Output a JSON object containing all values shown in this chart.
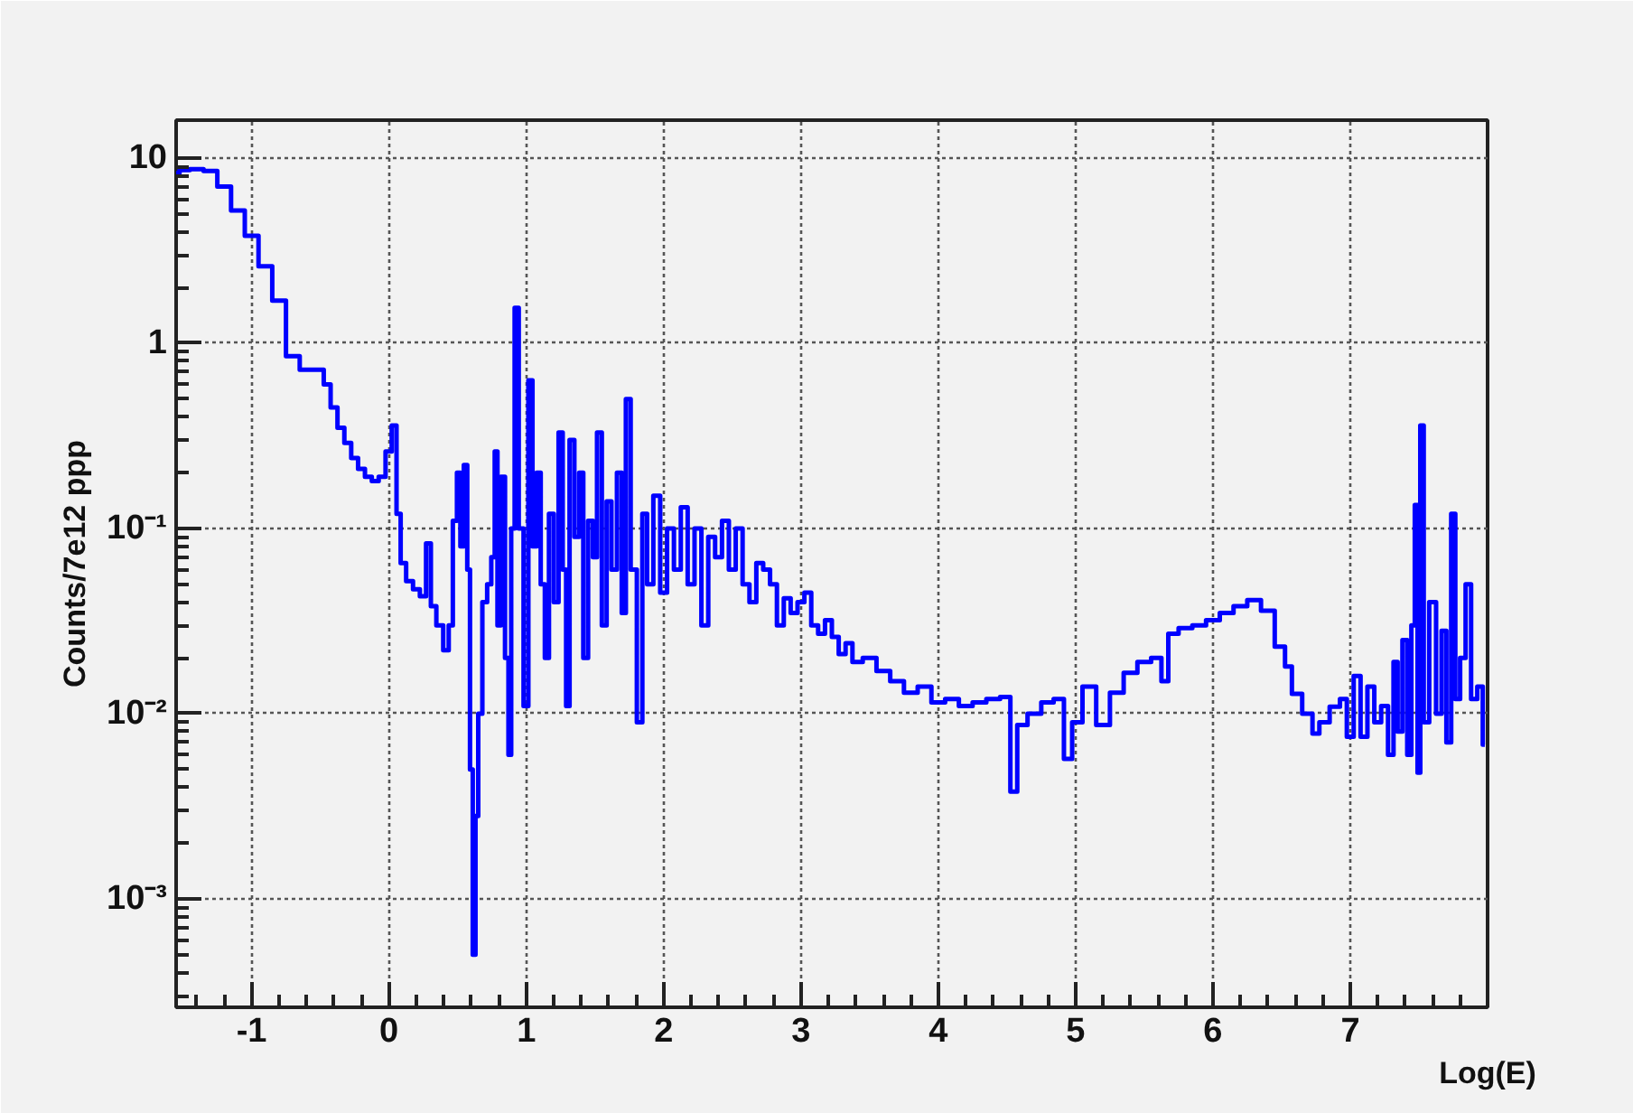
{
  "chart_data": {
    "type": "step",
    "xlabel": "Log(E)",
    "ylabel": "Counts/7e12 ppp",
    "log": "y",
    "grid": true,
    "marker": "none",
    "line_style": "solid",
    "xlim": [
      -1.55,
      8
    ],
    "ylim": [
      0.00026,
      16
    ],
    "xticks": [
      -1,
      0,
      1,
      2,
      3,
      4,
      5,
      6,
      7
    ],
    "yticks": [
      {
        "value": 0.001,
        "label": "10⁻³"
      },
      {
        "value": 0.01,
        "label": "10⁻²"
      },
      {
        "value": 0.1,
        "label": "10⁻¹"
      },
      1,
      10
    ],
    "series": [
      {
        "color": "#0000ff",
        "x": [
          -1.55,
          -1.5,
          -1.4,
          -1.3,
          -1.2,
          -1.1,
          -1.0,
          -0.9,
          -0.8,
          -0.7,
          -0.6,
          -0.5,
          -0.45,
          -0.4,
          -0.35,
          -0.3,
          -0.25,
          -0.2,
          -0.15,
          -0.1,
          -0.05,
          0.0,
          0.04,
          0.07,
          0.1,
          0.15,
          0.2,
          0.25,
          0.29,
          0.32,
          0.37,
          0.42,
          0.45,
          0.48,
          0.51,
          0.53,
          0.56,
          0.58,
          0.6,
          0.62,
          0.64,
          0.66,
          0.7,
          0.73,
          0.76,
          0.78,
          0.8,
          0.83,
          0.86,
          0.88,
          0.9,
          0.93,
          0.96,
          1.0,
          1.03,
          1.06,
          1.09,
          1.12,
          1.15,
          1.18,
          1.22,
          1.25,
          1.28,
          1.3,
          1.33,
          1.37,
          1.4,
          1.43,
          1.47,
          1.5,
          1.53,
          1.57,
          1.6,
          1.64,
          1.68,
          1.71,
          1.74,
          1.78,
          1.83,
          1.86,
          1.9,
          1.95,
          2.0,
          2.05,
          2.1,
          2.15,
          2.2,
          2.25,
          2.3,
          2.35,
          2.4,
          2.45,
          2.5,
          2.55,
          2.6,
          2.65,
          2.7,
          2.75,
          2.8,
          2.85,
          2.9,
          2.95,
          3.0,
          3.05,
          3.1,
          3.15,
          3.2,
          3.25,
          3.3,
          3.35,
          3.4,
          3.5,
          3.6,
          3.7,
          3.8,
          3.9,
          4.0,
          4.1,
          4.2,
          4.3,
          4.4,
          4.5,
          4.55,
          4.6,
          4.7,
          4.8,
          4.88,
          4.95,
          5.0,
          5.1,
          5.2,
          5.3,
          5.4,
          5.5,
          5.6,
          5.65,
          5.7,
          5.8,
          5.9,
          6.0,
          6.1,
          6.2,
          6.3,
          6.4,
          6.5,
          6.55,
          6.6,
          6.7,
          6.75,
          6.8,
          6.9,
          6.95,
          7.0,
          7.05,
          7.1,
          7.15,
          7.2,
          7.25,
          7.3,
          7.33,
          7.36,
          7.4,
          7.43,
          7.46,
          7.48,
          7.5,
          7.52,
          7.55,
          7.6,
          7.65,
          7.68,
          7.72,
          7.75,
          7.78,
          7.82,
          7.86,
          7.9,
          7.95,
          7.98
        ],
        "values": [
          8.3,
          8.6,
          8.7,
          8.5,
          7.0,
          5.2,
          3.8,
          2.6,
          1.7,
          0.85,
          0.72,
          0.72,
          0.6,
          0.45,
          0.35,
          0.29,
          0.24,
          0.21,
          0.19,
          0.18,
          0.19,
          0.26,
          0.36,
          0.12,
          0.065,
          0.052,
          0.047,
          0.043,
          0.083,
          0.038,
          0.03,
          0.022,
          0.03,
          0.11,
          0.2,
          0.08,
          0.22,
          0.06,
          0.005,
          0.0005,
          0.0028,
          0.01,
          0.04,
          0.05,
          0.07,
          0.26,
          0.03,
          0.19,
          0.02,
          0.006,
          0.1,
          1.55,
          0.1,
          0.011,
          0.63,
          0.08,
          0.2,
          0.05,
          0.02,
          0.12,
          0.04,
          0.33,
          0.06,
          0.011,
          0.3,
          0.09,
          0.2,
          0.02,
          0.11,
          0.07,
          0.33,
          0.03,
          0.14,
          0.06,
          0.2,
          0.035,
          0.5,
          0.06,
          0.009,
          0.12,
          0.05,
          0.15,
          0.045,
          0.1,
          0.06,
          0.13,
          0.05,
          0.1,
          0.03,
          0.09,
          0.07,
          0.11,
          0.06,
          0.1,
          0.05,
          0.04,
          0.065,
          0.06,
          0.05,
          0.03,
          0.042,
          0.035,
          0.04,
          0.045,
          0.03,
          0.027,
          0.032,
          0.026,
          0.021,
          0.024,
          0.019,
          0.02,
          0.017,
          0.015,
          0.013,
          0.014,
          0.0115,
          0.012,
          0.011,
          0.0115,
          0.012,
          0.0123,
          0.0038,
          0.0087,
          0.01,
          0.0115,
          0.012,
          0.0057,
          0.009,
          0.014,
          0.0087,
          0.013,
          0.0166,
          0.019,
          0.02,
          0.015,
          0.027,
          0.029,
          0.03,
          0.032,
          0.035,
          0.038,
          0.041,
          0.036,
          0.023,
          0.018,
          0.0128,
          0.01,
          0.0078,
          0.009,
          0.0109,
          0.012,
          0.0075,
          0.016,
          0.0075,
          0.014,
          0.009,
          0.011,
          0.006,
          0.019,
          0.008,
          0.025,
          0.006,
          0.03,
          0.134,
          0.0048,
          0.36,
          0.009,
          0.04,
          0.01,
          0.028,
          0.007,
          0.12,
          0.012,
          0.02,
          0.05,
          0.012,
          0.014,
          0.0068
        ]
      }
    ]
  }
}
